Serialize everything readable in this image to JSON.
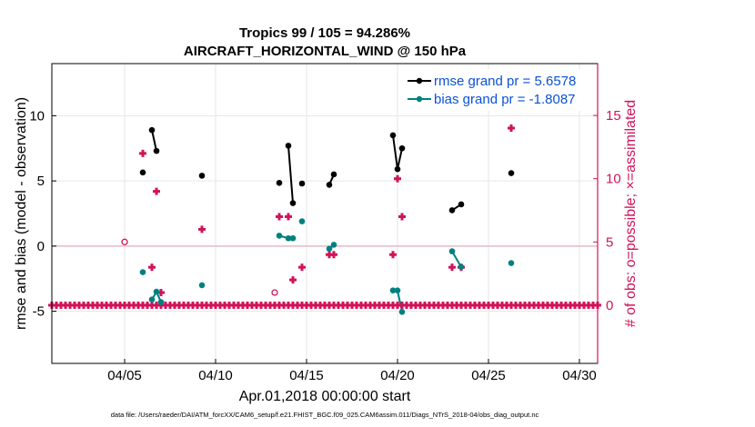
{
  "chart_data": {
    "type": "line",
    "title": "Tropics 99 / 105 = 94.286%",
    "subtitle": "AIRCRAFT_HORIZONTAL_WIND @ 150 hPa",
    "xlabel": "Apr.01,2018 00:00:00 start",
    "ylabel_left": "rmse and bias (model - observation)",
    "ylabel_right": "# of obs: o=possible; ×=assimilated",
    "footnote": "data file: /Users/raeder/DAI/ATM_forcXX/CAM6_setup/f.e21.FHIST_BGC.f09_025.CAM6assim.011/Diags_NTrS_2018-04/obs_diag_output.nc",
    "x_range_days": [
      1,
      31
    ],
    "x_ticks": [
      {
        "day": 5,
        "label": "04/05"
      },
      {
        "day": 10,
        "label": "04/10"
      },
      {
        "day": 15,
        "label": "04/15"
      },
      {
        "day": 20,
        "label": "04/20"
      },
      {
        "day": 25,
        "label": "04/25"
      },
      {
        "day": 30,
        "label": "04/30"
      }
    ],
    "ylim_left": [
      -9,
      14
    ],
    "y_ticks_left": [
      -5,
      0,
      5,
      10
    ],
    "ylim_right": [
      -4.6,
      19.1
    ],
    "y_ticks_right": [
      0,
      5,
      10,
      15
    ],
    "legend": [
      {
        "name": "rmse grand pr = 5.6578",
        "color": "#000000"
      },
      {
        "name": "bias grand pr = -1.8087",
        "color": "#008080"
      }
    ],
    "series": [
      {
        "name": "rmse",
        "color": "#000000",
        "points": [
          [
            6.0,
            5.65
          ],
          [
            6.5,
            8.9
          ],
          [
            6.75,
            7.3
          ],
          [
            9.25,
            5.4
          ],
          [
            13.5,
            4.85
          ],
          [
            14.0,
            7.7
          ],
          [
            14.25,
            3.3
          ],
          [
            14.75,
            4.8
          ],
          [
            16.25,
            4.7
          ],
          [
            16.5,
            5.5
          ],
          [
            19.75,
            8.5
          ],
          [
            20.0,
            5.9
          ],
          [
            20.25,
            7.5
          ],
          [
            23.0,
            2.75
          ],
          [
            23.5,
            3.2
          ],
          [
            26.25,
            5.6
          ]
        ],
        "connected": [
          [
            [
              6.5,
              8.9
            ],
            [
              6.75,
              7.3
            ]
          ],
          [
            [
              14.0,
              7.7
            ],
            [
              14.25,
              3.3
            ]
          ],
          [
            [
              16.25,
              4.7
            ],
            [
              16.5,
              5.5
            ]
          ],
          [
            [
              19.75,
              8.5
            ],
            [
              20.0,
              5.9
            ],
            [
              20.25,
              7.5
            ]
          ],
          [
            [
              23.0,
              2.75
            ],
            [
              23.5,
              3.2
            ]
          ]
        ]
      },
      {
        "name": "bias",
        "color": "#008080",
        "points": [
          [
            6.0,
            -2.0
          ],
          [
            6.5,
            -4.1
          ],
          [
            6.75,
            -3.5
          ],
          [
            7.0,
            -4.3
          ],
          [
            9.25,
            -3.0
          ],
          [
            13.5,
            0.8
          ],
          [
            14.0,
            0.6
          ],
          [
            14.25,
            0.6
          ],
          [
            14.75,
            1.9
          ],
          [
            16.25,
            -0.2
          ],
          [
            16.5,
            0.1
          ],
          [
            19.75,
            -3.4
          ],
          [
            20.0,
            -3.4
          ],
          [
            20.25,
            -5.05
          ],
          [
            23.0,
            -0.4
          ],
          [
            23.5,
            -1.6
          ],
          [
            26.25,
            -1.3
          ]
        ],
        "connected": [
          [
            [
              6.5,
              -4.1
            ],
            [
              6.75,
              -3.5
            ],
            [
              7.0,
              -4.3
            ]
          ],
          [
            [
              13.5,
              0.8
            ],
            [
              14.0,
              0.6
            ],
            [
              14.25,
              0.6
            ]
          ],
          [
            [
              16.25,
              -0.2
            ],
            [
              16.5,
              0.1
            ]
          ],
          [
            [
              19.75,
              -3.4
            ],
            [
              20.0,
              -3.4
            ],
            [
              20.25,
              -5.05
            ]
          ],
          [
            [
              23.0,
              -0.4
            ],
            [
              23.5,
              -1.6
            ]
          ]
        ]
      },
      {
        "name": "obs possible",
        "color": "#d0135a",
        "marker": "circle-open",
        "points": [
          [
            5.0,
            5
          ],
          [
            13.25,
            1
          ]
        ]
      },
      {
        "name": "obs assimilated",
        "color": "#d0135a",
        "marker": "plus",
        "nonzero_points": [
          [
            6.0,
            12
          ],
          [
            6.5,
            3
          ],
          [
            6.75,
            9
          ],
          [
            7.0,
            1
          ],
          [
            9.25,
            6
          ],
          [
            13.5,
            7
          ],
          [
            14.0,
            7
          ],
          [
            14.25,
            2
          ],
          [
            14.75,
            3
          ],
          [
            16.25,
            4
          ],
          [
            16.5,
            4
          ],
          [
            19.75,
            4
          ],
          [
            20.0,
            10
          ],
          [
            20.25,
            7
          ],
          [
            23.0,
            3
          ],
          [
            23.5,
            3
          ],
          [
            26.25,
            14
          ]
        ],
        "zero_range_days": [
          1,
          31
        ],
        "zero_step_days": 0.25
      }
    ],
    "reference_line": {
      "y": 0,
      "color": "#e6b9c6"
    }
  }
}
